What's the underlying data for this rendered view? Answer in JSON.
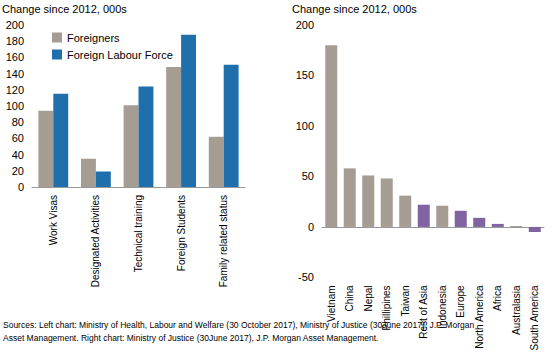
{
  "chart_data": [
    {
      "type": "bar",
      "y_label": "Change since 2012, 000s",
      "categories": [
        "Work Visas",
        "Designated Activities",
        "Technical training",
        "Foreign Students",
        "Family related status"
      ],
      "series": [
        {
          "name": "Foreigners",
          "color": "#a59d94",
          "values": [
            94,
            35,
            101,
            148,
            62
          ]
        },
        {
          "name": "Foreign Labour Force",
          "color": "#1f6fad",
          "values": [
            115,
            19,
            124,
            188,
            151
          ]
        }
      ],
      "ylim": [
        0,
        200
      ],
      "yticks": [
        0,
        20,
        40,
        60,
        80,
        100,
        120,
        140,
        160,
        180,
        200
      ],
      "grid": false,
      "legend": "upper left"
    },
    {
      "type": "bar",
      "y_label": "Change since 2012, 000s",
      "categories": [
        "Vietnam",
        "China",
        "Nepal",
        "Phillipines",
        "Taiwan",
        "Rest of Asia",
        "Indonesia",
        "Europe",
        "North America",
        "Africa",
        "Australasia",
        "South America"
      ],
      "values": [
        180,
        58,
        51,
        48,
        31,
        22,
        21,
        16,
        9,
        3,
        1,
        -5
      ],
      "colors": [
        "#a59d94",
        "#a59d94",
        "#a59d94",
        "#a59d94",
        "#a59d94",
        "#8064a2",
        "#a59d94",
        "#8064a2",
        "#8064a2",
        "#8064a2",
        "#a59d94",
        "#8064a2"
      ],
      "ylim": [
        -50,
        200
      ],
      "yticks": [
        -50,
        0,
        50,
        100,
        150,
        200
      ],
      "grid": false
    }
  ],
  "footnote": [
    "Sources: Left chart: Ministry of Health, Labour and Welfare (30 October 2017), Ministry of Justice (30June 2017), J.P. Morgan",
    "Asset Management. Right chart: Ministry of Justice (30June 2017), J.P. Morgan Asset Management."
  ]
}
